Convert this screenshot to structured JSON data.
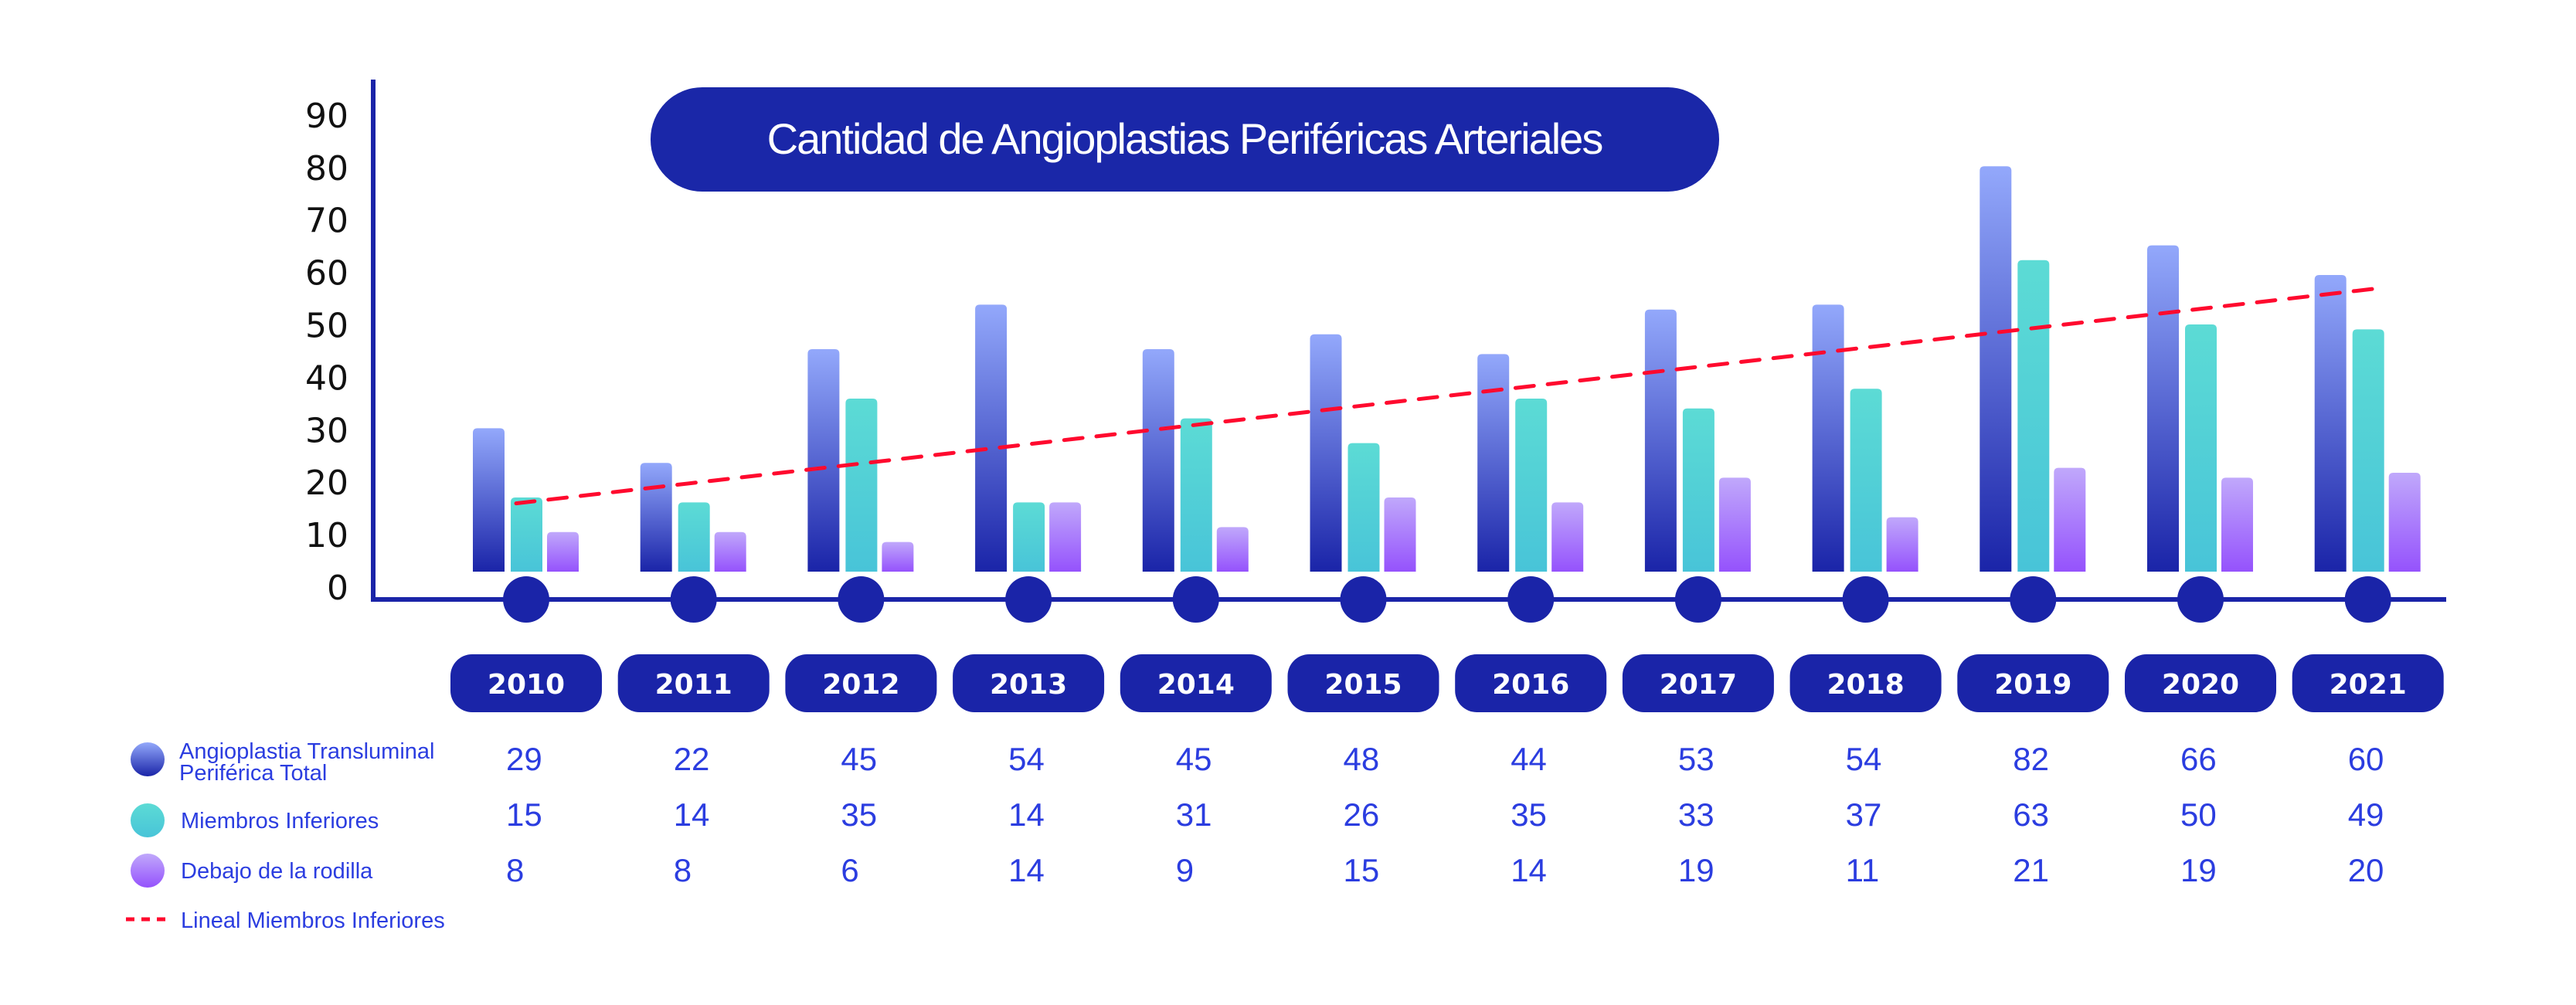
{
  "chart_data": {
    "type": "bar",
    "title": "Cantidad de Angioplastias Periféricas Arteriales",
    "xlabel": "",
    "ylabel": "",
    "ylim": [
      0,
      90
    ],
    "yticks": [
      "0",
      "10",
      "20",
      "30",
      "40",
      "50",
      "60",
      "70",
      "80",
      "90"
    ],
    "grid": false,
    "categories": [
      "2010",
      "2011",
      "2012",
      "2013",
      "2014",
      "2015",
      "2016",
      "2017",
      "2018",
      "2019",
      "2020",
      "2021"
    ],
    "series": [
      {
        "name": "Angioplastia Transluminal Periférica Total",
        "legend_lines": [
          "Angioplastia Transluminal",
          "Periférica Total"
        ],
        "color_top": "#93a8fb",
        "color_bottom": "#1a24a8",
        "values": [
          29,
          22,
          45,
          54,
          45,
          48,
          44,
          53,
          54,
          82,
          66,
          60
        ]
      },
      {
        "name": "Miembros Inferiores",
        "legend_lines": [
          "Miembros Inferiores"
        ],
        "color_top": "#5cdbd5",
        "color_bottom": "#48c4d8",
        "values": [
          15,
          14,
          35,
          14,
          31,
          26,
          35,
          33,
          37,
          63,
          50,
          49
        ]
      },
      {
        "name": "Debajo de la rodilla",
        "legend_lines": [
          "Debajo de la rodilla"
        ],
        "color_top": "#c0a8fb",
        "color_bottom": "#9552fc",
        "values": [
          8,
          8,
          6,
          14,
          9,
          15,
          14,
          19,
          11,
          21,
          19,
          20
        ]
      }
    ],
    "trendline": {
      "name": "Lineal Miembros Inferiores",
      "of_series": "Miembros Inferiores",
      "type": "linear",
      "style": "dashed",
      "color": "#ff0a2e"
    },
    "legend_placement": "bottom-left",
    "data_table": true
  },
  "colors": {
    "accent": "#1a24a8",
    "text_blue": "#2b3de0",
    "trend_red": "#ff0a2e"
  }
}
